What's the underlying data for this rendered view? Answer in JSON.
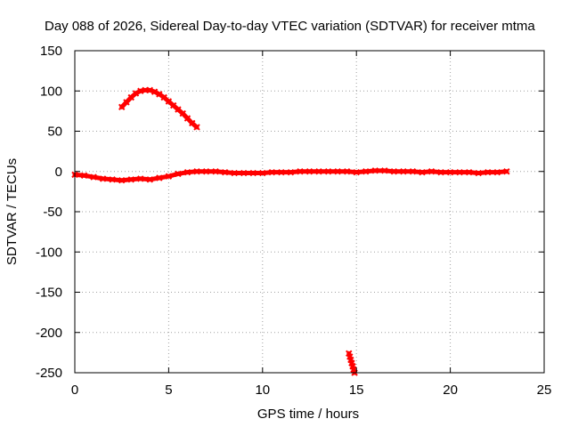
{
  "chart_data": {
    "type": "scatter",
    "title": "Day 088 of 2026, Sidereal Day-to-day VTEC variation (SDTVAR) for receiver mtma",
    "xlabel": "GPS time / hours",
    "ylabel": "SDTVAR / TECUs",
    "xlim": [
      0,
      25
    ],
    "ylim": [
      -250,
      150
    ],
    "xticks": [
      0,
      5,
      10,
      15,
      20,
      25
    ],
    "yticks": [
      150,
      100,
      50,
      0,
      -50,
      -100,
      -150,
      -200,
      -250
    ],
    "grid": true,
    "marker_color": "#ff0000",
    "series": [
      {
        "name": "arc-main",
        "x": [
          0.0,
          0.5,
          1.0,
          1.5,
          2.0,
          2.5,
          3.0,
          3.5,
          4.0,
          4.5,
          5.0,
          5.5,
          6.0,
          6.5,
          7.0,
          7.5,
          8.0,
          8.5,
          9.0,
          9.5,
          10.0,
          10.5,
          11.0,
          11.5,
          12.0,
          12.5,
          13.0,
          13.5,
          14.0,
          14.5,
          15.0,
          15.5,
          16.0,
          16.5,
          17.0,
          17.5,
          18.0,
          18.5,
          19.0,
          19.5,
          20.0,
          20.5,
          21.0,
          21.5,
          22.0,
          22.5,
          23.0
        ],
        "y": [
          -4,
          -5,
          -7,
          -9,
          -10,
          -11,
          -10,
          -9,
          -10,
          -8,
          -6,
          -3,
          -1,
          0,
          0,
          0,
          -1,
          -2,
          -2,
          -2,
          -2,
          -1,
          -1,
          -1,
          0,
          0,
          0,
          0,
          0,
          0,
          -1,
          0,
          1,
          1,
          0,
          0,
          0,
          -1,
          0,
          -1,
          -1,
          -1,
          -1,
          -2,
          -1,
          -1,
          0
        ]
      },
      {
        "name": "arc-high",
        "x": [
          2.5,
          2.75,
          3.0,
          3.25,
          3.5,
          3.75,
          4.0,
          4.25,
          4.5,
          4.75,
          5.0,
          5.25,
          5.5,
          5.75,
          6.0,
          6.25,
          6.5
        ],
        "y": [
          80,
          86,
          92,
          97,
          100,
          101,
          101,
          99,
          96,
          92,
          87,
          82,
          77,
          72,
          66,
          60,
          55
        ]
      },
      {
        "name": "arc-low",
        "x": [
          14.6,
          14.65,
          14.7,
          14.75,
          14.8,
          14.85,
          14.9
        ],
        "y": [
          -226,
          -230,
          -234,
          -238,
          -242,
          -246,
          -250
        ]
      }
    ]
  }
}
